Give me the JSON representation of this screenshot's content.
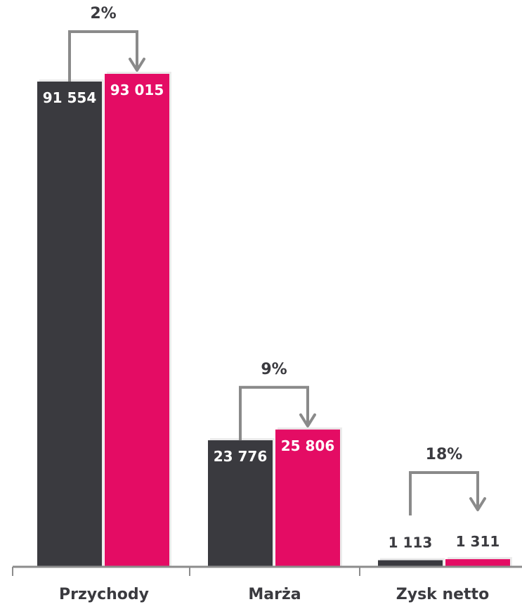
{
  "chart_data": {
    "type": "bar",
    "categories": [
      "Przychody",
      "Marża",
      "Zysk netto"
    ],
    "series": [
      {
        "values": [
          91554,
          23776,
          1113
        ],
        "labels": [
          "91 554",
          "23 776",
          "1 113"
        ],
        "color": "#3a3a3f"
      },
      {
        "values": [
          93015,
          25806,
          1311
        ],
        "labels": [
          "93 015",
          "25 806",
          "1 311"
        ],
        "color": "#e40c64"
      }
    ],
    "changes": [
      "2%",
      "9%",
      "18%"
    ],
    "ylim": [
      0,
      93015
    ],
    "grid": false,
    "legend": false,
    "title": "",
    "xlabel": "",
    "ylabel": ""
  },
  "colors": {
    "axis": "#8c8c8c",
    "arrow": "#8a8a8a",
    "text": "#3a3a3f",
    "label_on_bar": "#ffffff"
  }
}
